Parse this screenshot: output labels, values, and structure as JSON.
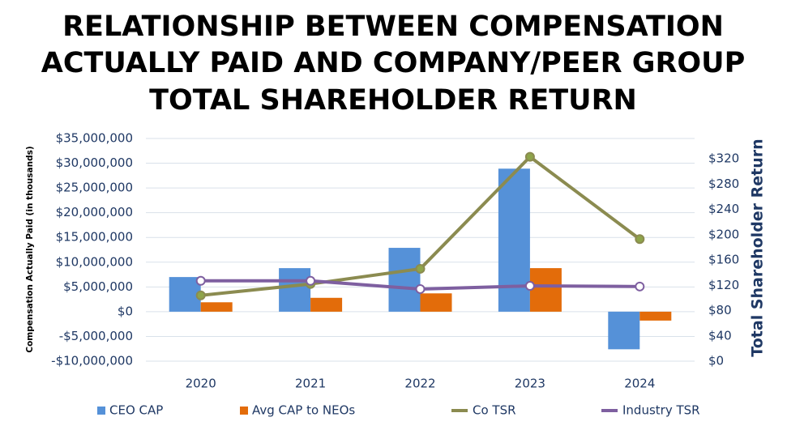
{
  "chart_data": {
    "type": "bar_line",
    "title": [
      "RELATIONSHIP BETWEEN COMPENSATION",
      "ACTUALLY PAID AND COMPANY/PEER GROUP",
      "TOTAL SHAREHOLDER RETURN"
    ],
    "y_label": "Compensation Actually Paid (in thousands)",
    "y2_label": "Total Shareholder Return",
    "categories": [
      "2020",
      "2021",
      "2022",
      "2023",
      "2024"
    ],
    "series": [
      {
        "name": "CEO CAP",
        "color": "#5591d8",
        "kind": "bar",
        "values": [
          7000000,
          8800000,
          12900000,
          28900000,
          -7600000
        ]
      },
      {
        "name": "Avg CAP to NEOs",
        "color": "#e36c0a",
        "kind": "bar",
        "values": [
          1900000,
          2800000,
          3700000,
          8800000,
          -1800000
        ]
      },
      {
        "name": "Co TSR",
        "color": "#8b8b50",
        "kind": "line",
        "axis": "y2",
        "values": [
          104,
          122,
          146,
          323,
          193
        ]
      },
      {
        "name": "Industry TSR",
        "color": "#7e5fa0",
        "kind": "line",
        "axis": "y2",
        "values": [
          127,
          127,
          114,
          119,
          118
        ]
      }
    ],
    "ylim": [
      -10000000,
      35000000
    ],
    "yticks": [
      {
        "value": -10000000,
        "label": "-$10,000,000"
      },
      {
        "value": -5000000,
        "label": "-$5,000,000"
      },
      {
        "value": 0,
        "label": "$0"
      },
      {
        "value": 5000000,
        "label": "$5,000,000"
      },
      {
        "value": 10000000,
        "label": "$10,000,000"
      },
      {
        "value": 15000000,
        "label": "$15,000,000"
      },
      {
        "value": 20000000,
        "label": "$20,000,000"
      },
      {
        "value": 25000000,
        "label": "$25,000,000"
      },
      {
        "value": 30000000,
        "label": "$30,000,000"
      },
      {
        "value": 35000000,
        "label": "$35,000,000"
      }
    ],
    "y2lim": [
      0,
      352
    ],
    "y2ticks": [
      {
        "value": 0,
        "label": "$0"
      },
      {
        "value": 40,
        "label": "$40"
      },
      {
        "value": 80,
        "label": "$80"
      },
      {
        "value": 120,
        "label": "$120"
      },
      {
        "value": 160,
        "label": "$160"
      },
      {
        "value": 200,
        "label": "$200"
      },
      {
        "value": 240,
        "label": "$240"
      },
      {
        "value": 280,
        "label": "$280"
      },
      {
        "value": 320,
        "label": "$320"
      }
    ],
    "grid": true,
    "legend": "bottom"
  }
}
